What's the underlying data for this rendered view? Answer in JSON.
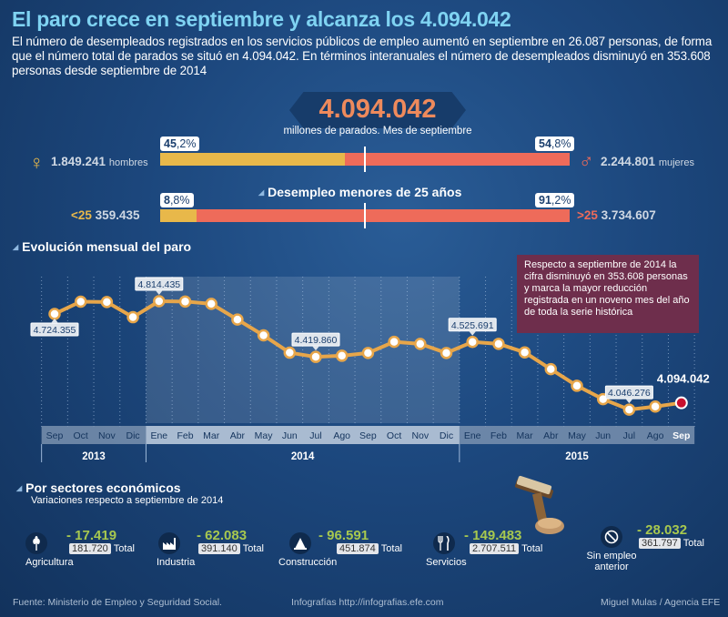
{
  "header": {
    "title": "El paro crece en septiembre y alcanza los 4.094.042",
    "intro": "El número de desempleados registrados en los servicios públicos de empleo aumentó en septiembre en 26.087 personas, de forma que el número total de parados se situó en 4.094.042. En términos interanuales el número de desempleados disminuyó en 353.608 personas desde septiembre de 2014"
  },
  "summary": {
    "total": "4.094.042",
    "subtitle": "millones de parados. Mes de septiembre"
  },
  "gender": {
    "men_value": "1.849.241",
    "men_label": "hombres",
    "men_pct_int": "45",
    "men_pct_dec": ",2%",
    "men_pct": 45.2,
    "women_value": "2.244.801",
    "women_label": "mujeres",
    "women_pct_int": "54",
    "women_pct_dec": ",8%",
    "women_pct": 54.8,
    "female_symbol": "♀",
    "male_symbol": "♂"
  },
  "youth": {
    "title": "Desempleo menores de 25 años",
    "under_label": "<25",
    "under_value": "359.435",
    "under_pct_int": "8",
    "under_pct_dec": ",8%",
    "under_pct": 8.8,
    "over_label": ">25",
    "over_value": "3.734.607",
    "over_pct_int": "91",
    "over_pct_dec": ",2%",
    "over_pct": 91.2
  },
  "evolution": {
    "title": "Evolución mensual del paro",
    "note": "Respecto a septiembre de 2014 la cifra disminuyó en 353.608 personas y marca la mayor reducción registrada en un noveno mes del año de toda la serie histórica"
  },
  "chart_data": {
    "type": "line",
    "title": "Evolución mensual del paro",
    "categories": [
      "Sep",
      "Oct",
      "Nov",
      "Dic",
      "Ene",
      "Feb",
      "Mar",
      "Abr",
      "May",
      "Jun",
      "Jul",
      "Ago",
      "Sep",
      "Oct",
      "Nov",
      "Dic",
      "Ene",
      "Feb",
      "Mar",
      "Abr",
      "May",
      "Jun",
      "Jul",
      "Ago",
      "Sep"
    ],
    "years": [
      {
        "label": "2013",
        "start": 0,
        "end": 3
      },
      {
        "label": "2014",
        "start": 4,
        "end": 15
      },
      {
        "label": "2015",
        "start": 16,
        "end": 24
      }
    ],
    "values": [
      4724355,
      4811383,
      4808908,
      4701338,
      4814435,
      4812486,
      4795866,
      4684719,
      4572385,
      4449701,
      4419860,
      4427930,
      4447650,
      4526804,
      4512153,
      4447711,
      4525691,
      4512384,
      4451939,
      4333016,
      4215031,
      4120304,
      4046276,
      4067955,
      4094042
    ],
    "labels": [
      {
        "index": 0,
        "text": "4.724.355",
        "pos": "below"
      },
      {
        "index": 4,
        "text": "4.814.435",
        "pos": "above"
      },
      {
        "index": 10,
        "text": "4.419.860",
        "pos": "above"
      },
      {
        "index": 16,
        "text": "4.525.691",
        "pos": "above"
      },
      {
        "index": 22,
        "text": "4.046.276",
        "pos": "above"
      },
      {
        "index": 24,
        "text": "4.094.042",
        "pos": "highlight"
      }
    ],
    "ylim": [
      3950000,
      4950000
    ],
    "highlight_range": [
      4,
      15
    ],
    "grid": true
  },
  "sectors": {
    "title": "Por sectores económicos",
    "subtitle": "Variaciones respecto a septiembre de 2014",
    "total_word": "Total",
    "items": [
      {
        "name": "Agricultura",
        "change": "- 17.419",
        "total": "181.720",
        "icon": "wheat-icon"
      },
      {
        "name": "Industria",
        "change": "- 62.083",
        "total": "391.140",
        "icon": "factory-icon"
      },
      {
        "name": "Construcción",
        "change": "- 96.591",
        "total": "451.874",
        "icon": "construction-icon"
      },
      {
        "name": "Servicios",
        "change": "- 149.483",
        "total": "2.707.511",
        "icon": "cutlery-icon"
      },
      {
        "name": "Sin empleo anterior",
        "change": "- 28.032",
        "total": "361.797",
        "icon": "no-entry-icon"
      }
    ]
  },
  "footer": {
    "source": "Fuente: Ministerio de Empleo y Seguridad Social.",
    "web": "Infografías http://infografias.efe.com",
    "credit": "Miguel Mulas / Agencia EFE"
  },
  "colors": {
    "men": "#e8b84a",
    "women": "#ee6b5a",
    "line": "#e7a64a",
    "highlight": "#c8102e",
    "note_bg": "#6e2e4c"
  }
}
